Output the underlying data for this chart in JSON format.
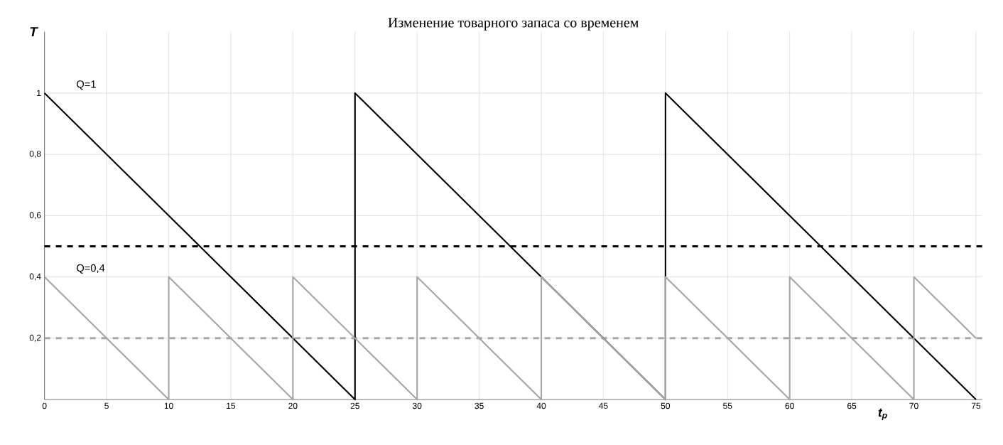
{
  "chart_data": {
    "type": "line",
    "title": "Изменение товарного запаса со временем",
    "xlabel": "t$_{p}$",
    "ylabel": "T",
    "series": [
      {
        "color": "#000000",
        "x": [
          0,
          25,
          25,
          50,
          50,
          75
        ],
        "values": [
          1,
          0,
          1,
          0,
          1,
          0
        ]
      },
      {
        "color": "#a6a6a6",
        "x": [
          0,
          10,
          10,
          20,
          20,
          30,
          30,
          40,
          40,
          50,
          50,
          60,
          60,
          70,
          70,
          75
        ],
        "values": [
          0.4,
          0,
          0.4,
          0,
          0.4,
          0,
          0.4,
          0,
          0.4,
          0,
          0.4,
          0,
          0.4,
          0,
          0.4,
          0.2
        ]
      }
    ],
    "ref_lines": [
      {
        "axis": "y",
        "value": 0.5,
        "color": "#000000",
        "line_style": "dashed"
      },
      {
        "axis": "y",
        "value": 0.2,
        "color": "#a6a6a6",
        "line_style": "dashed"
      }
    ],
    "annotations": [
      "Q=1",
      "Q=0,4"
    ],
    "xlim": [
      0,
      75.5
    ],
    "ylim": [
      0,
      1.2
    ],
    "xticks": [
      0,
      5,
      10,
      15,
      20,
      25,
      30,
      35,
      40,
      45,
      50,
      55,
      60,
      65,
      70,
      75
    ],
    "yticks": [
      {
        "value": 0.2,
        "label": "0,2"
      },
      {
        "value": 0.4,
        "label": "0,4"
      },
      {
        "value": 0.6,
        "label": "0,6"
      },
      {
        "value": 0.8,
        "label": "0,8"
      },
      1
    ],
    "grid": true,
    "marker": "none",
    "line_style": "solid"
  }
}
